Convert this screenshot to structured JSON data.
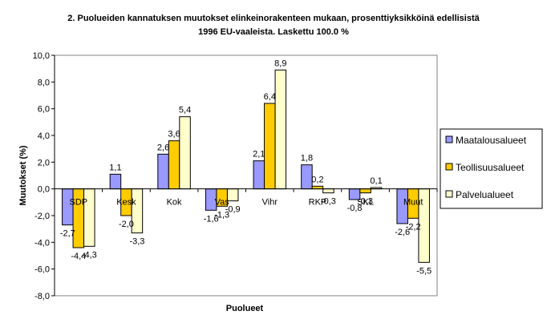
{
  "chart_data": {
    "type": "bar",
    "title_line1": "2. Puolueiden kannatuksen muutokset elinkeinorakenteen mukaan, prosenttiyksikköinä edellisistä",
    "title_line2": "1996 EU-vaaleista. Laskettu 100.0 %",
    "xlabel": "Puolueet",
    "ylabel": "Muutokset (%)",
    "ylim": [
      -8,
      10
    ],
    "yticks": [
      -8,
      -6,
      -4,
      -2,
      0,
      2,
      4,
      6,
      8,
      10
    ],
    "ytick_labels": [
      "-8,0",
      "-6,0",
      "-4,0",
      "-2,0",
      "0,0",
      "2,0",
      "4,0",
      "6,0",
      "8,0",
      "10,0"
    ],
    "categories": [
      "SDP",
      "Kesk",
      "Kok",
      "Vas",
      "Vihr",
      "RKP",
      "SKL",
      "Muut"
    ],
    "series": [
      {
        "name": "Maatalousalueet",
        "color": "#9999ff",
        "values": [
          -2.7,
          1.1,
          2.6,
          -1.6,
          2.1,
          1.8,
          -0.8,
          -2.6
        ],
        "labels": [
          "-2,7",
          "1,1",
          "2,6",
          "-1,6",
          "2,1",
          "1,8",
          "-0,8",
          "-2,6"
        ]
      },
      {
        "name": "Teollisuusalueet",
        "color": "#ffcc00",
        "values": [
          -4.4,
          -2.0,
          3.6,
          -1.3,
          6.4,
          0.2,
          -0.3,
          -2.2
        ],
        "labels": [
          "-4,4",
          "-2,0",
          "3,6",
          "-1,3",
          "6,4",
          "0,2",
          "-0,3",
          "-2,2"
        ]
      },
      {
        "name": "Palvelualueet",
        "color": "#ffffcc",
        "values": [
          -4.3,
          -3.3,
          5.4,
          -0.9,
          8.9,
          -0.3,
          0.1,
          -5.5
        ],
        "labels": [
          "-4,3",
          "-3,3",
          "5,4",
          "-0,9",
          "8,9",
          "-0,3",
          "0,1",
          "-5,5"
        ]
      }
    ],
    "grid": false,
    "legend_position": "right",
    "plot_background": "#ffffff"
  }
}
